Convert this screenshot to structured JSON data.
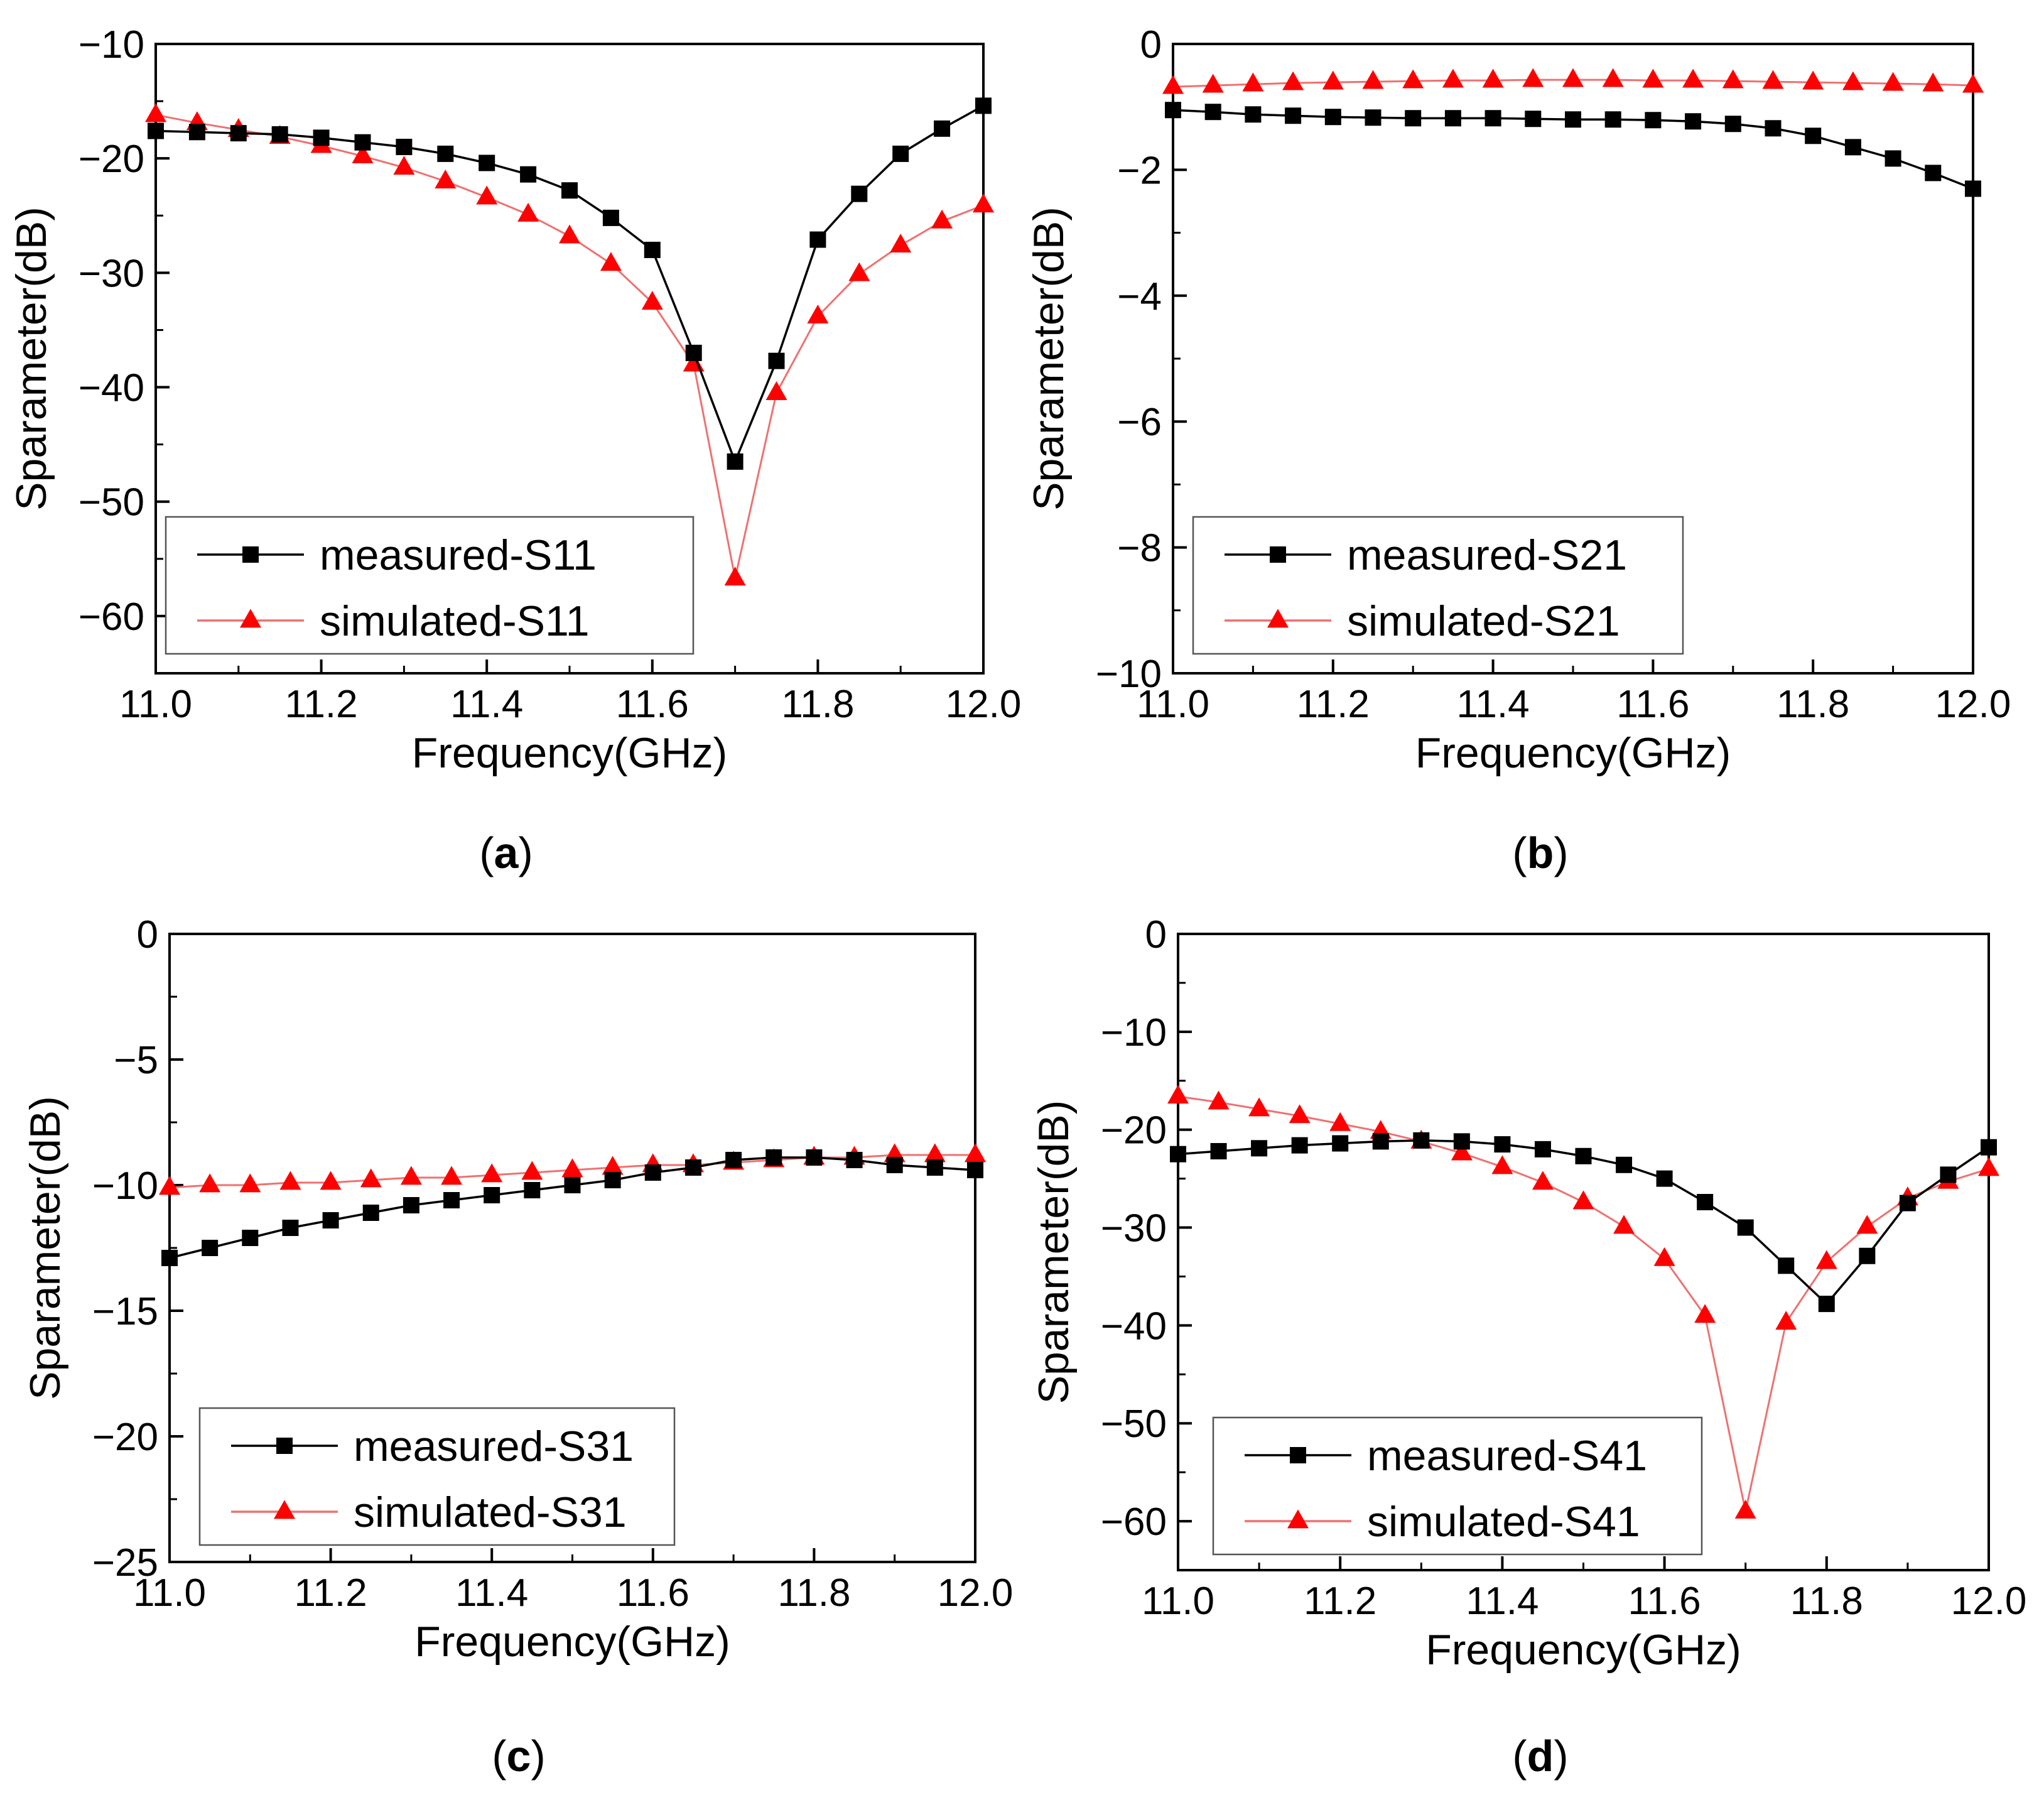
{
  "figure": {
    "colors": {
      "measured": "#000000",
      "simulated": "#ff0000",
      "simulated_line": "#f07070"
    },
    "panels": [
      {
        "chart_data": {
          "type": "line",
          "panel_label": "a",
          "xlabel": "Frequency(GHz)",
          "ylabel": "Sparameter(dB)",
          "xlim": [
            11.0,
            12.0
          ],
          "ylim": [
            -65,
            -10
          ],
          "xticks": [
            11.0,
            11.2,
            11.4,
            11.6,
            11.8,
            12.0
          ],
          "xtick_labels": [
            "11.0",
            "11.2",
            "11.4",
            "11.6",
            "11.8",
            "12.0"
          ],
          "yticks": [
            -10,
            -20,
            -30,
            -40,
            -50,
            -60
          ],
          "ytick_labels": [
            "−10",
            "−20",
            "−30",
            "−40",
            "−50",
            "−60"
          ],
          "x": [
            11.0,
            11.05,
            11.1,
            11.15,
            11.2,
            11.25,
            11.3,
            11.35,
            11.4,
            11.45,
            11.5,
            11.55,
            11.6,
            11.65,
            11.7,
            11.75,
            11.8,
            11.85,
            11.9,
            11.95,
            12.0
          ],
          "series": [
            {
              "name": "measured-S11",
              "marker": "square",
              "values": [
                -17.6,
                -17.7,
                -17.8,
                -17.9,
                -18.2,
                -18.6,
                -19.0,
                -19.6,
                -20.4,
                -21.4,
                -22.8,
                -25.2,
                -28.0,
                -37.0,
                -46.5,
                -37.7,
                -27.1,
                -23.1,
                -19.6,
                -17.4,
                -15.4
              ]
            },
            {
              "name": "simulated-S11",
              "marker": "triangle",
              "values": [
                -16.2,
                -16.9,
                -17.5,
                -18.1,
                -18.9,
                -19.8,
                -20.8,
                -22.0,
                -23.4,
                -24.9,
                -26.8,
                -29.2,
                -32.6,
                -38.0,
                -56.7,
                -40.5,
                -33.8,
                -30.1,
                -27.6,
                -25.5,
                -24.1
              ]
            }
          ],
          "legend": {
            "position": "bottom-left",
            "entries": [
              "measured-S11",
              "simulated-S11"
            ]
          }
        }
      },
      {
        "chart_data": {
          "type": "line",
          "panel_label": "b",
          "xlabel": "Frequency(GHz)",
          "ylabel": "Sparameter(dB)",
          "xlim": [
            11.0,
            12.0
          ],
          "ylim": [
            -10,
            0
          ],
          "xticks": [
            11.0,
            11.2,
            11.4,
            11.6,
            11.8,
            12.0
          ],
          "xtick_labels": [
            "11.0",
            "11.2",
            "11.4",
            "11.6",
            "11.8",
            "12.0"
          ],
          "yticks": [
            0,
            -2,
            -4,
            -6,
            -8,
            -10
          ],
          "ytick_labels": [
            "0",
            "−2",
            "−4",
            "−6",
            "−8",
            "−10"
          ],
          "x": [
            11.0,
            11.05,
            11.1,
            11.15,
            11.2,
            11.25,
            11.3,
            11.35,
            11.4,
            11.45,
            11.5,
            11.55,
            11.6,
            11.65,
            11.7,
            11.75,
            11.8,
            11.85,
            11.9,
            11.95,
            12.0
          ],
          "series": [
            {
              "name": "measured-S21",
              "marker": "square",
              "values": [
                -1.05,
                -1.08,
                -1.12,
                -1.14,
                -1.16,
                -1.17,
                -1.18,
                -1.18,
                -1.18,
                -1.19,
                -1.2,
                -1.2,
                -1.21,
                -1.23,
                -1.27,
                -1.34,
                -1.46,
                -1.64,
                -1.82,
                -2.05,
                -2.3
              ]
            },
            {
              "name": "simulated-S21",
              "marker": "triangle",
              "values": [
                -0.68,
                -0.66,
                -0.64,
                -0.62,
                -0.61,
                -0.6,
                -0.59,
                -0.58,
                -0.58,
                -0.57,
                -0.57,
                -0.57,
                -0.58,
                -0.58,
                -0.59,
                -0.6,
                -0.61,
                -0.62,
                -0.63,
                -0.64,
                -0.66
              ]
            }
          ],
          "legend": {
            "position": "bottom-left",
            "entries": [
              "measured-S21",
              "simulated-S21"
            ]
          }
        }
      },
      {
        "chart_data": {
          "type": "line",
          "panel_label": "c",
          "xlabel": "Frequency(GHz)",
          "ylabel": "Sparameter(dB)",
          "xlim": [
            11.0,
            12.0
          ],
          "ylim": [
            -25,
            0
          ],
          "xticks": [
            11.0,
            11.2,
            11.4,
            11.6,
            11.8,
            12.0
          ],
          "xtick_labels": [
            "11.0",
            "11.2",
            "11.4",
            "11.6",
            "11.8",
            "12.0"
          ],
          "yticks": [
            0,
            -5,
            -10,
            -15,
            -20,
            -25
          ],
          "ytick_labels": [
            "0",
            "−5",
            "−10",
            "−15",
            "−20",
            "−25"
          ],
          "x": [
            11.0,
            11.05,
            11.1,
            11.15,
            11.2,
            11.25,
            11.3,
            11.35,
            11.4,
            11.45,
            11.5,
            11.55,
            11.6,
            11.65,
            11.7,
            11.75,
            11.8,
            11.85,
            11.9,
            11.95,
            12.0
          ],
          "series": [
            {
              "name": "measured-S31",
              "marker": "square",
              "values": [
                -12.9,
                -12.5,
                -12.1,
                -11.7,
                -11.4,
                -11.1,
                -10.8,
                -10.6,
                -10.4,
                -10.2,
                -10.0,
                -9.8,
                -9.5,
                -9.3,
                -9.0,
                -8.9,
                -8.9,
                -9.0,
                -9.2,
                -9.3,
                -9.4
              ]
            },
            {
              "name": "simulated-S31",
              "marker": "triangle",
              "values": [
                -10.1,
                -10.0,
                -10.0,
                -9.9,
                -9.9,
                -9.8,
                -9.7,
                -9.7,
                -9.6,
                -9.5,
                -9.4,
                -9.3,
                -9.2,
                -9.2,
                -9.1,
                -9.0,
                -8.9,
                -8.9,
                -8.8,
                -8.8,
                -8.8
              ]
            }
          ],
          "legend": {
            "position": "bottom-left",
            "entries": [
              "measured-S31",
              "simulated-S31"
            ]
          }
        }
      },
      {
        "chart_data": {
          "type": "line",
          "panel_label": "d",
          "xlabel": "Frequency(GHz)",
          "ylabel": "Sparameter(dB)",
          "xlim": [
            11.0,
            12.0
          ],
          "ylim": [
            -65,
            0
          ],
          "xticks": [
            11.0,
            11.2,
            11.4,
            11.6,
            11.8,
            12.0
          ],
          "xtick_labels": [
            "11.0",
            "11.2",
            "11.4",
            "11.6",
            "11.8",
            "12.0"
          ],
          "yticks": [
            0,
            -10,
            -20,
            -30,
            -40,
            -50,
            -60
          ],
          "ytick_labels": [
            "0",
            "−10",
            "−20",
            "−30",
            "−40",
            "−50",
            "−60"
          ],
          "x": [
            11.0,
            11.05,
            11.1,
            11.15,
            11.2,
            11.25,
            11.3,
            11.35,
            11.4,
            11.45,
            11.5,
            11.55,
            11.6,
            11.65,
            11.7,
            11.75,
            11.8,
            11.85,
            11.9,
            11.95,
            12.0
          ],
          "series": [
            {
              "name": "measured-S41",
              "marker": "square",
              "values": [
                -22.5,
                -22.2,
                -21.9,
                -21.6,
                -21.4,
                -21.2,
                -21.1,
                -21.2,
                -21.5,
                -22.0,
                -22.7,
                -23.6,
                -25.0,
                -27.4,
                -30.0,
                -33.9,
                -37.8,
                -32.9,
                -27.5,
                -24.6,
                -21.8
              ]
            },
            {
              "name": "simulated-S41",
              "marker": "triangle",
              "values": [
                -16.6,
                -17.2,
                -17.9,
                -18.6,
                -19.4,
                -20.2,
                -21.2,
                -22.4,
                -23.8,
                -25.4,
                -27.4,
                -29.9,
                -33.2,
                -39.0,
                -59.0,
                -39.7,
                -33.5,
                -29.9,
                -27.0,
                -25.3,
                -24.0
              ]
            }
          ],
          "legend": {
            "position": "bottom-left",
            "entries": [
              "measured-S41",
              "simulated-S41"
            ]
          }
        }
      }
    ]
  }
}
